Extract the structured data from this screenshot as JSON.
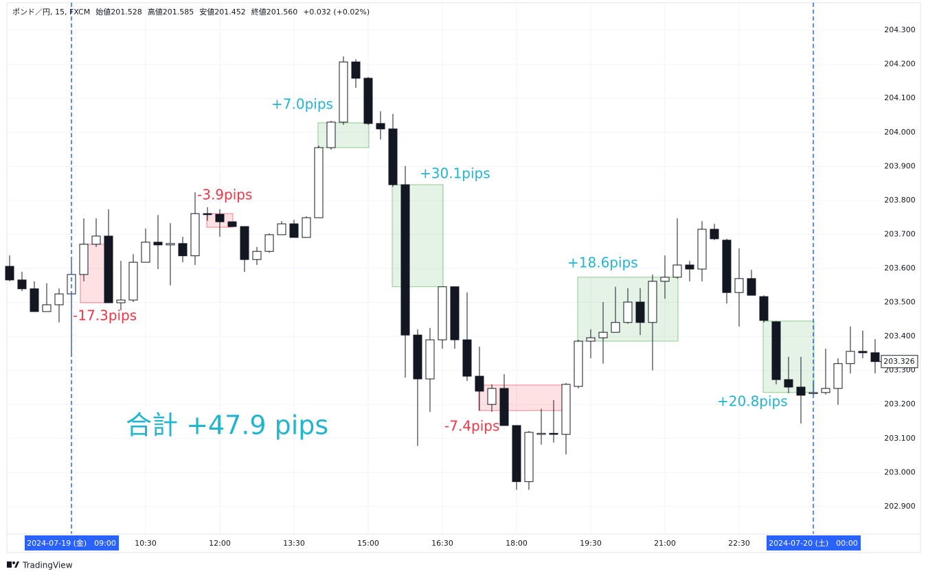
{
  "header": {
    "symbol": "ポンド／円, 15, FXCM",
    "ohlc": [
      "始値201.528",
      "高値201.585",
      "安値201.452",
      "終値201.560"
    ],
    "change": "+0.032 (+0.02%)"
  },
  "footer": "TradingView",
  "chart_data": {
    "type": "candlestick",
    "categories": [
      null,
      null,
      null,
      null,
      null,
      "2024-07-19 (金)　09:00",
      null,
      null,
      null,
      null,
      null,
      "10:30",
      null,
      null,
      null,
      null,
      null,
      "12:00",
      null,
      null,
      null,
      null,
      null,
      "13:30",
      null,
      null,
      null,
      null,
      null,
      "15:00",
      null,
      null,
      null,
      null,
      null,
      "16:30",
      null,
      null,
      null,
      null,
      null,
      "18:00",
      null,
      null,
      null,
      null,
      null,
      "19:30",
      null,
      null,
      null,
      null,
      null,
      "21:00",
      null,
      null,
      null,
      null,
      null,
      "22:30",
      null,
      null,
      null,
      null,
      null,
      "2024-07-20 (土)　00:00",
      null,
      null,
      null,
      null,
      null
    ],
    "highlight_categories": [
      5,
      65
    ],
    "open": [
      203.606,
      203.566,
      203.54,
      203.473,
      203.493,
      203.525,
      203.582,
      203.671,
      203.695,
      203.499,
      203.507,
      203.618,
      203.677,
      203.669,
      203.673,
      203.637,
      203.761,
      203.759,
      203.737,
      203.723,
      203.626,
      203.65,
      203.699,
      203.731,
      203.691,
      203.749,
      203.955,
      204.03,
      204.207,
      204.159,
      204.026,
      204.01,
      203.846,
      203.404,
      203.275,
      203.39,
      203.546,
      203.39,
      203.283,
      203.2,
      203.247,
      203.138,
      202.973,
      203.114,
      203.115,
      203.112,
      203.253,
      203.386,
      203.396,
      203.412,
      203.441,
      203.501,
      203.441,
      203.562,
      203.574,
      203.61,
      203.598,
      203.715,
      203.683,
      203.529,
      203.57,
      203.517,
      203.443,
      203.273,
      203.251,
      203.234,
      203.235,
      203.247,
      203.32,
      203.356,
      203.352
    ],
    "high": [
      203.638,
      203.59,
      203.562,
      203.556,
      203.541,
      203.626,
      203.747,
      203.747,
      203.774,
      203.622,
      203.642,
      203.717,
      203.757,
      203.733,
      203.693,
      203.824,
      203.78,
      203.774,
      203.737,
      203.723,
      203.663,
      203.703,
      203.739,
      203.743,
      203.753,
      203.961,
      204.034,
      204.223,
      204.215,
      204.163,
      204.062,
      204.054,
      203.901,
      203.421,
      203.425,
      203.546,
      203.546,
      203.529,
      203.37,
      203.259,
      203.289,
      203.138,
      203.122,
      203.187,
      203.213,
      203.263,
      203.39,
      203.421,
      203.501,
      203.546,
      203.542,
      203.542,
      203.582,
      203.638,
      203.747,
      203.622,
      203.739,
      203.731,
      203.687,
      203.659,
      203.596,
      203.521,
      203.445,
      203.34,
      203.34,
      203.259,
      203.364,
      203.336,
      203.429,
      203.417,
      203.392
    ],
    "low": [
      203.562,
      203.533,
      203.473,
      203.473,
      203.441,
      203.344,
      203.562,
      203.663,
      203.499,
      203.477,
      203.501,
      203.618,
      203.598,
      203.55,
      203.618,
      203.61,
      203.74,
      203.693,
      203.723,
      203.59,
      203.61,
      203.646,
      203.699,
      203.691,
      203.691,
      203.749,
      203.949,
      204.022,
      204.131,
      204.022,
      203.979,
      203.84,
      203.279,
      203.078,
      203.178,
      203.364,
      203.364,
      203.269,
      203.182,
      203.178,
      203.138,
      202.949,
      202.949,
      203.082,
      203.088,
      203.053,
      203.247,
      203.336,
      203.32,
      203.412,
      203.437,
      203.404,
      203.3,
      203.511,
      203.57,
      203.562,
      203.562,
      203.683,
      203.497,
      203.429,
      203.521,
      203.441,
      203.259,
      203.233,
      203.144,
      203.219,
      203.229,
      203.199,
      203.291,
      203.336,
      203.291
    ],
    "close": [
      203.566,
      203.54,
      203.473,
      203.493,
      203.525,
      203.582,
      203.671,
      203.695,
      203.499,
      203.507,
      203.618,
      203.677,
      203.669,
      203.673,
      203.637,
      203.761,
      203.759,
      203.737,
      203.723,
      203.626,
      203.65,
      203.699,
      203.731,
      203.691,
      203.749,
      203.955,
      204.03,
      204.207,
      204.159,
      204.026,
      204.01,
      203.846,
      203.404,
      203.275,
      203.39,
      203.546,
      203.39,
      203.283,
      203.239,
      203.247,
      203.138,
      202.973,
      203.118,
      203.115,
      203.114,
      203.259,
      203.386,
      203.396,
      203.412,
      203.441,
      203.501,
      203.441,
      203.562,
      203.574,
      203.61,
      203.598,
      203.715,
      203.687,
      203.529,
      203.57,
      203.521,
      203.447,
      203.273,
      203.251,
      203.227,
      203.235,
      203.247,
      203.32,
      203.356,
      203.352,
      203.326
    ],
    "up_color": "#ffffff",
    "down_color": "#131722",
    "ylim": [
      202.819,
      204.381
    ],
    "yticks": [
      {
        "value": 202.9,
        "label": "202.900"
      },
      {
        "value": 203.0,
        "label": "203.000"
      },
      {
        "value": 203.1,
        "label": "203.100"
      },
      {
        "value": 203.2,
        "label": "203.200"
      },
      {
        "value": 203.3,
        "label": "203.300"
      },
      {
        "value": 203.4,
        "label": "203.400"
      },
      {
        "value": 203.5,
        "label": "203.500"
      },
      {
        "value": 203.6,
        "label": "203.600"
      },
      {
        "value": 203.7,
        "label": "203.700"
      },
      {
        "value": 203.8,
        "label": "203.800"
      },
      {
        "value": 203.9,
        "label": "203.900"
      },
      {
        "value": 204.0,
        "label": "204.000"
      },
      {
        "value": 204.1,
        "label": "204.100"
      },
      {
        "value": 204.2,
        "label": "204.200"
      },
      {
        "value": 204.3,
        "label": "204.300"
      }
    ],
    "grid": true,
    "session_lines": [
      5,
      65
    ],
    "trades": [
      {
        "label": "-17.3pips",
        "start": 6,
        "end": 8,
        "top": 203.671,
        "bottom": 203.499,
        "box_color": "#f23645",
        "text_color": "#f23645"
      },
      {
        "label": "-3.9pips",
        "start": 16,
        "end": 18,
        "top": 203.761,
        "bottom": 203.721,
        "box_color": "#f23645",
        "text_color": "#f23645"
      },
      {
        "label": "+7.0pips",
        "start": 25,
        "end": 29,
        "top": 204.028,
        "bottom": 203.955,
        "box_color": "#4caf50",
        "text_color": "#22b5cf"
      },
      {
        "label": "+30.1pips",
        "start": 31,
        "end": 35,
        "top": 203.846,
        "bottom": 203.546,
        "box_color": "#4caf50",
        "text_color": "#22b5cf"
      },
      {
        "label": "-7.4pips",
        "start": 38,
        "end": 45,
        "top": 203.257,
        "bottom": 203.182,
        "box_color": "#f23645",
        "text_color": "#f23645"
      },
      {
        "label": "+18.6pips",
        "start": 46,
        "end": 54,
        "top": 203.574,
        "bottom": 203.386,
        "box_color": "#4caf50",
        "text_color": "#22b5cf"
      },
      {
        "label": "+20.8pips",
        "start": 61,
        "end": 65,
        "top": 203.445,
        "bottom": 203.235,
        "box_color": "#4caf50",
        "text_color": "#22b5cf"
      }
    ],
    "total_label": "合計 +47.9 pips",
    "total_color": "#22b5cf"
  }
}
